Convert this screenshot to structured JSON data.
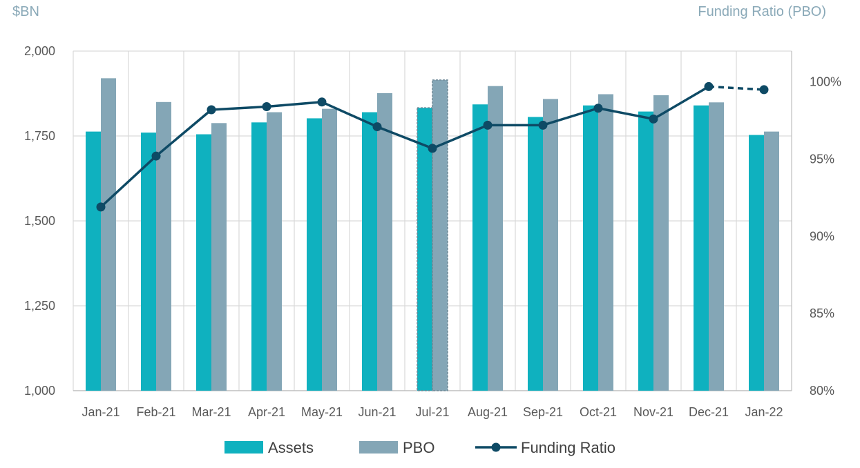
{
  "chart_data": {
    "type": "bar",
    "y_left_label": "$BN",
    "y_right_label": "Funding Ratio (PBO)",
    "categories": [
      "Jan-21",
      "Feb-21",
      "Mar-21",
      "Apr-21",
      "May-21",
      "Jun-21",
      "Jul-21",
      "Aug-21",
      "Sep-21",
      "Oct-21",
      "Nov-21",
      "Dec-21",
      "Jan-22"
    ],
    "y_left": {
      "min": 1000,
      "max": 2000,
      "ticks": [
        1000,
        1250,
        1500,
        1750,
        2000
      ],
      "tick_labels": [
        "1,000",
        "1,250",
        "1,500",
        "1,750",
        "2,000"
      ]
    },
    "y_right": {
      "min": 80,
      "max": 102,
      "ticks": [
        80,
        85,
        90,
        95,
        100
      ],
      "tick_labels": [
        "80%",
        "85%",
        "90%",
        "95%",
        "100%"
      ]
    },
    "grid": true,
    "legend_position": "bottom",
    "highlighted_category": "Jul-21",
    "series": [
      {
        "name": "Assets",
        "kind": "bar",
        "axis": "left",
        "color": "#0fb1bf",
        "values": [
          1763,
          1760,
          1755,
          1790,
          1802,
          1820,
          1833,
          1843,
          1806,
          1840,
          1822,
          1840,
          1753
        ]
      },
      {
        "name": "PBO",
        "kind": "bar",
        "axis": "left",
        "color": "#84a6b6",
        "values": [
          1920,
          1850,
          1788,
          1820,
          1830,
          1876,
          1915,
          1897,
          1859,
          1873,
          1870,
          1849,
          1763
        ]
      },
      {
        "name": "Funding Ratio",
        "kind": "line",
        "axis": "right",
        "color": "#0e4a65",
        "values": [
          91.9,
          95.2,
          98.2,
          98.4,
          98.7,
          97.1,
          95.7,
          97.2,
          97.2,
          98.3,
          97.6,
          99.7,
          99.5
        ],
        "dashed_from_index": 11
      }
    ]
  }
}
